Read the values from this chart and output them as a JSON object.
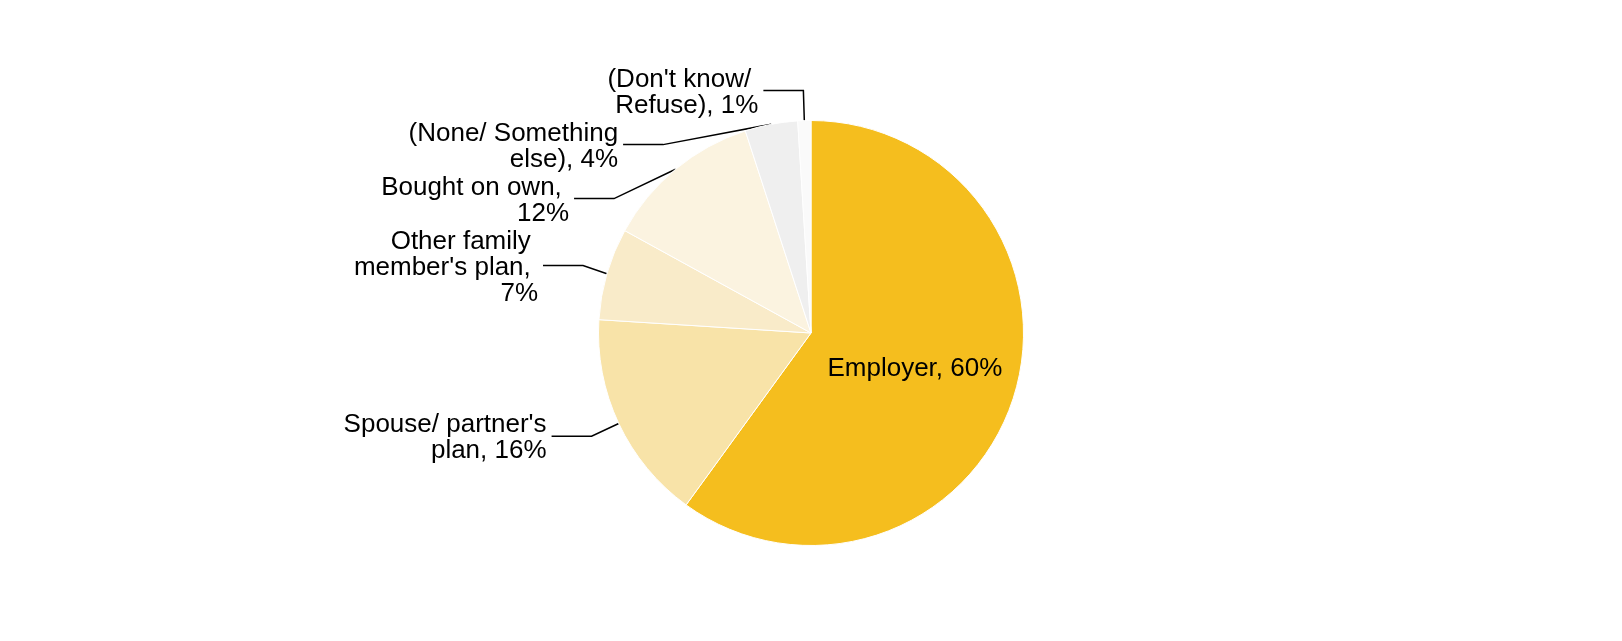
{
  "chart_data": {
    "type": "pie",
    "categories": [
      "Employer, 60%",
      "Spouse/ partner's plan, 16%",
      "Other family member's plan, 7%",
      "Bought on own, 12%",
      "(None/ Something else), 4%",
      "(Don't know/ Refuse), 1%"
    ],
    "values": [
      60,
      16,
      7,
      12,
      4,
      1
    ],
    "colors": [
      "#f5be1e",
      "#f8e3a8",
      "#f9ebc9",
      "#fbf3e0",
      "#efefef",
      "#fafafa"
    ],
    "legend": false
  }
}
